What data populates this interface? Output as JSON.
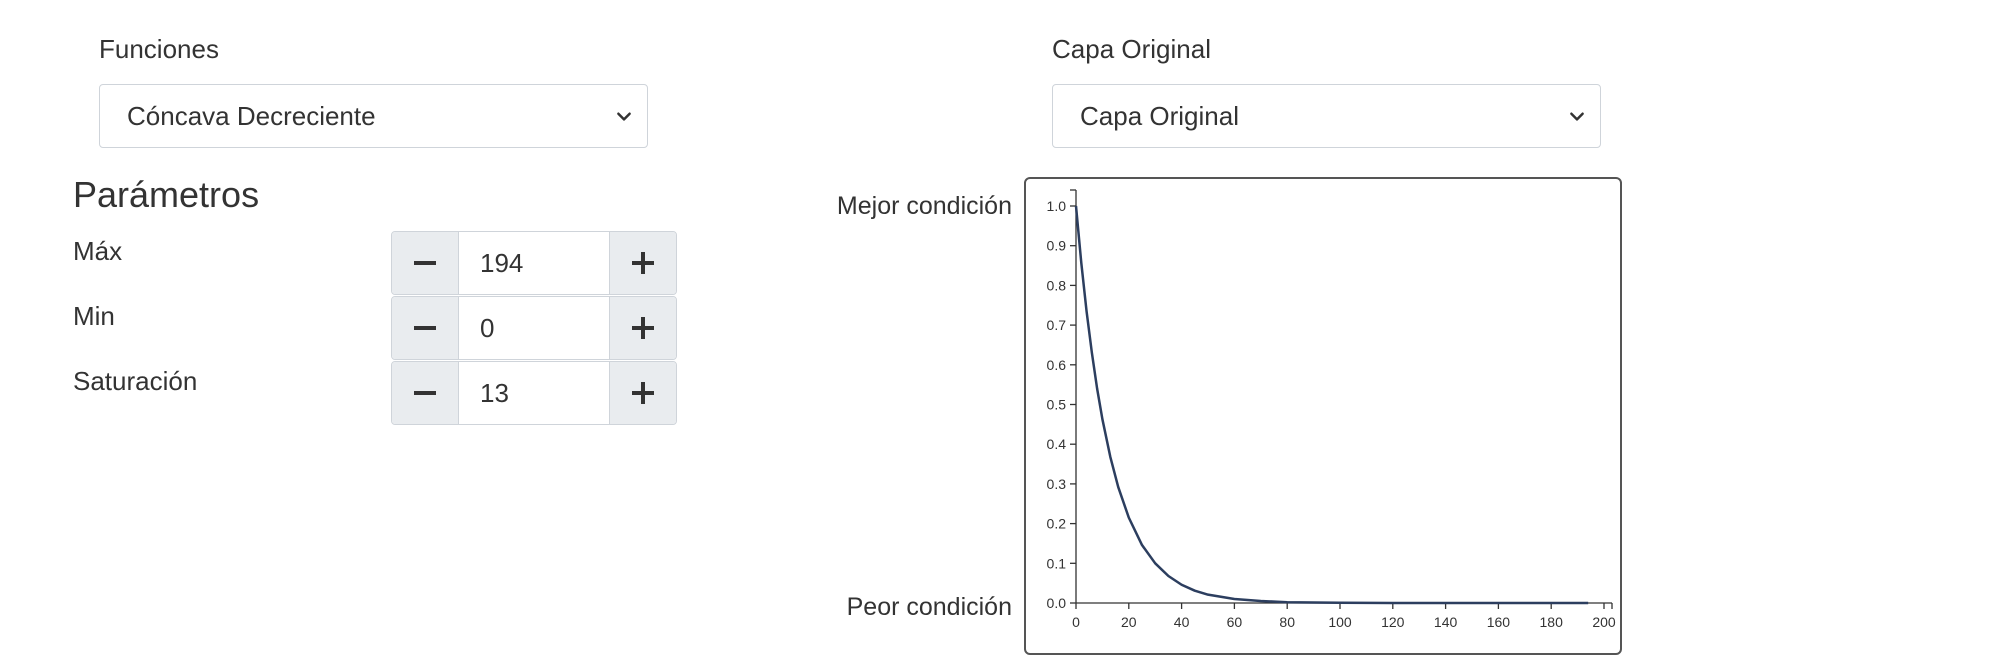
{
  "funciones": {
    "label": "Funciones",
    "selected": "Cóncava Decreciente"
  },
  "capa": {
    "label": "Capa Original",
    "selected": "Capa Original"
  },
  "parametros": {
    "title": "Parámetros",
    "items": [
      {
        "label": "Máx",
        "value": "194"
      },
      {
        "label": "Min",
        "value": "0"
      },
      {
        "label": "Saturación",
        "value": "13"
      }
    ]
  },
  "chart_labels": {
    "best": "Mejor condición",
    "worst": "Peor condición"
  },
  "icons": {
    "minus": "minus-icon",
    "plus": "plus-icon",
    "dropdown": "chevron-down-icon"
  },
  "chart_data": {
    "type": "line",
    "xlim": [
      0,
      200
    ],
    "ylim": [
      0,
      1
    ],
    "x_ticks": [
      "0",
      "20",
      "40",
      "60",
      "80",
      "100",
      "120",
      "140",
      "160",
      "180",
      "200"
    ],
    "y_ticks": [
      "0.0",
      "0.1",
      "0.2",
      "0.3",
      "0.4",
      "0.5",
      "0.6",
      "0.7",
      "0.8",
      "0.9",
      "1.0"
    ],
    "series": [
      {
        "color": "#2c3e5f",
        "x": [
          0,
          2,
          4,
          6,
          8,
          10,
          13,
          16,
          20,
          25,
          30,
          35,
          40,
          45,
          50,
          60,
          70,
          80,
          100,
          120,
          140,
          160,
          180,
          194
        ],
        "y": [
          1.0,
          0.857,
          0.735,
          0.631,
          0.54,
          0.463,
          0.368,
          0.292,
          0.215,
          0.146,
          0.1,
          0.068,
          0.046,
          0.031,
          0.021,
          0.01,
          0.005,
          0.002,
          0.0005,
          0.0001,
          0.0,
          0.0,
          0.0,
          0.0
        ]
      }
    ]
  }
}
